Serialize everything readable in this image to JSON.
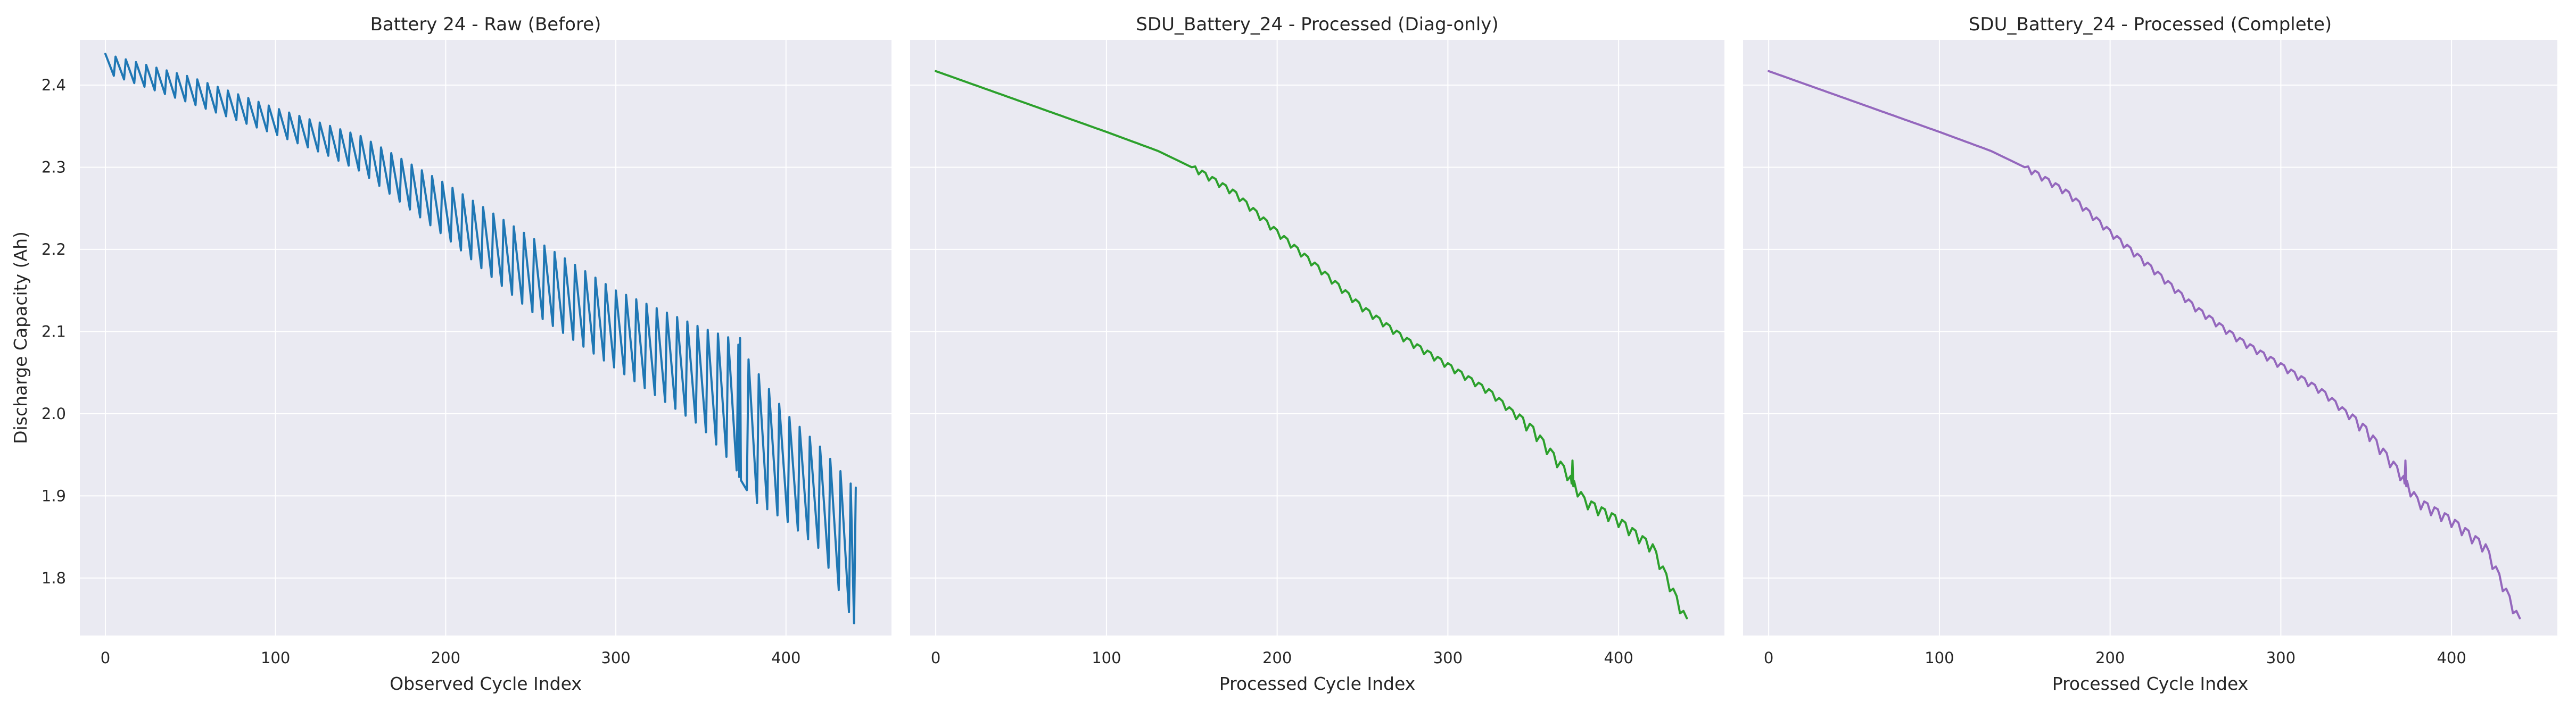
{
  "chart_data": [
    {
      "type": "line",
      "title": "Battery 24 - Raw (Before)",
      "xlabel": "Observed Cycle Index",
      "ylabel": "Discharge Capacity (Ah)",
      "xlim": [
        -15,
        462
      ],
      "ylim": [
        1.73,
        2.455
      ],
      "xticks": [
        0,
        100,
        200,
        300,
        400
      ],
      "yticks": [
        1.8,
        1.9,
        2.0,
        2.1,
        2.2,
        2.3,
        2.4
      ],
      "grid": true,
      "color": "#1f77b4",
      "pattern": "sawtooth",
      "spike_period": 6,
      "baseline": [
        [
          0,
          2.415
        ],
        [
          50,
          2.378
        ],
        [
          100,
          2.34
        ],
        [
          130,
          2.315
        ],
        [
          150,
          2.295
        ],
        [
          200,
          2.215
        ],
        [
          250,
          2.125
        ],
        [
          300,
          2.055
        ],
        [
          350,
          1.985
        ],
        [
          370,
          1.935
        ],
        [
          380,
          1.895
        ],
        [
          400,
          1.87
        ],
        [
          420,
          1.835
        ],
        [
          440,
          1.745
        ]
      ],
      "peak": [
        [
          0,
          2.438
        ],
        [
          50,
          2.41
        ],
        [
          100,
          2.372
        ],
        [
          150,
          2.338
        ],
        [
          200,
          2.28
        ],
        [
          250,
          2.215
        ],
        [
          300,
          2.15
        ],
        [
          350,
          2.105
        ],
        [
          370,
          2.09
        ],
        [
          400,
          2.0
        ],
        [
          420,
          1.96
        ],
        [
          440,
          1.91
        ]
      ],
      "anomalies": [
        [
          373,
          2.092
        ]
      ]
    },
    {
      "type": "line",
      "title": "SDU_Battery_24 - Processed (Diag-only)",
      "xlabel": "Processed Cycle Index",
      "xlim": [
        -15,
        462
      ],
      "ylim": [
        1.73,
        2.455
      ],
      "xticks": [
        0,
        100,
        200,
        300,
        400
      ],
      "grid": true,
      "color": "#2ca02c",
      "pattern": "smooth",
      "baseline": [
        [
          0,
          2.417
        ],
        [
          50,
          2.38
        ],
        [
          100,
          2.343
        ],
        [
          130,
          2.32
        ],
        [
          150,
          2.3
        ],
        [
          175,
          2.268
        ],
        [
          200,
          2.22
        ],
        [
          225,
          2.175
        ],
        [
          250,
          2.128
        ],
        [
          275,
          2.09
        ],
        [
          300,
          2.058
        ],
        [
          325,
          2.025
        ],
        [
          350,
          1.978
        ],
        [
          370,
          1.925
        ],
        [
          380,
          1.892
        ],
        [
          400,
          1.868
        ],
        [
          420,
          1.835
        ],
        [
          440,
          1.745
        ]
      ],
      "anomalies": [
        [
          373,
          1.943
        ]
      ]
    },
    {
      "type": "line",
      "title": "SDU_Battery_24 - Processed (Complete)",
      "xlabel": "Processed Cycle Index",
      "xlim": [
        -15,
        462
      ],
      "ylim": [
        1.73,
        2.455
      ],
      "xticks": [
        0,
        100,
        200,
        300,
        400
      ],
      "grid": true,
      "color": "#9467bd",
      "pattern": "smooth",
      "baseline": [
        [
          0,
          2.417
        ],
        [
          50,
          2.38
        ],
        [
          100,
          2.343
        ],
        [
          130,
          2.32
        ],
        [
          150,
          2.3
        ],
        [
          175,
          2.268
        ],
        [
          200,
          2.22
        ],
        [
          225,
          2.175
        ],
        [
          250,
          2.128
        ],
        [
          275,
          2.09
        ],
        [
          300,
          2.058
        ],
        [
          325,
          2.025
        ],
        [
          350,
          1.978
        ],
        [
          370,
          1.925
        ],
        [
          380,
          1.892
        ],
        [
          400,
          1.868
        ],
        [
          420,
          1.835
        ],
        [
          440,
          1.745
        ]
      ],
      "anomalies": [
        [
          373,
          1.943
        ]
      ]
    }
  ]
}
